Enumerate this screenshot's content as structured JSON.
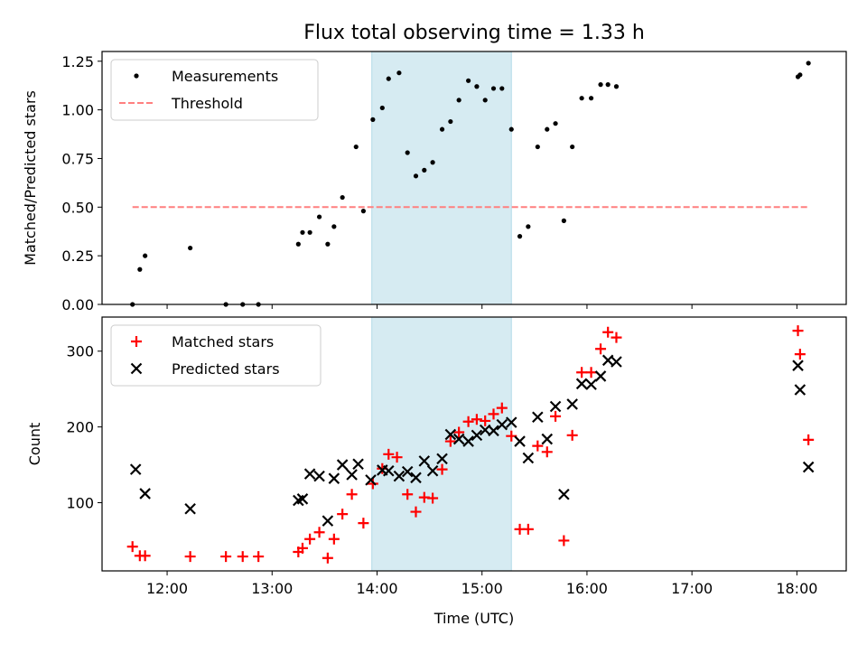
{
  "chart_data": {
    "title": "Flux total observing time = 1.33 h",
    "xlabel": "Time (UTC)",
    "x_ticks": [
      "12:00",
      "13:00",
      "14:00",
      "15:00",
      "16:00",
      "17:00",
      "18:00"
    ],
    "x_range_hours": [
      11.38,
      18.47
    ],
    "shaded_interval_hours": [
      13.95,
      15.28
    ],
    "shade_color": "#add8e6",
    "panels": [
      {
        "type": "scatter",
        "ylabel": "Matched/Predicted stars",
        "ylim": [
          0,
          1.3
        ],
        "y_ticks": [
          "0.00",
          "0.25",
          "0.50",
          "0.75",
          "1.00",
          "1.25"
        ],
        "y_tick_values": [
          0,
          0.25,
          0.5,
          0.75,
          1.0,
          1.25
        ],
        "legend_position": "top-left",
        "series": [
          {
            "name": "Measurements",
            "marker": "dot",
            "color": "#000000",
            "x": [
              11.67,
              11.74,
              11.79,
              12.22,
              12.56,
              12.72,
              12.87,
              13.25,
              13.29,
              13.36,
              13.45,
              13.53,
              13.59,
              13.67,
              13.8,
              13.87,
              13.96,
              14.05,
              14.11,
              14.21,
              14.29,
              14.37,
              14.45,
              14.53,
              14.62,
              14.7,
              14.78,
              14.87,
              14.95,
              15.03,
              15.11,
              15.19,
              15.28,
              15.36,
              15.44,
              15.53,
              15.62,
              15.7,
              15.78,
              15.86,
              15.95,
              16.04,
              16.13,
              16.2,
              16.28,
              18.01,
              18.03,
              18.11
            ],
            "y": [
              0.0,
              0.18,
              0.25,
              0.29,
              0.0,
              0.0,
              0.0,
              0.31,
              0.37,
              0.37,
              0.45,
              0.31,
              0.4,
              0.55,
              0.81,
              0.48,
              0.95,
              1.01,
              1.16,
              1.19,
              0.78,
              0.66,
              0.69,
              0.73,
              0.9,
              0.94,
              1.05,
              1.15,
              1.12,
              1.05,
              1.11,
              1.11,
              0.9,
              0.35,
              0.4,
              0.81,
              0.9,
              0.93,
              0.43,
              0.81,
              1.06,
              1.06,
              1.13,
              1.13,
              1.12,
              1.17,
              1.18,
              1.24
            ]
          },
          {
            "name": "Threshold",
            "type": "line",
            "style": "dashed",
            "color": "#ff7f7f",
            "x": [
              11.67,
              18.11
            ],
            "y": [
              0.5,
              0.5
            ]
          }
        ]
      },
      {
        "type": "scatter",
        "ylabel": "Count",
        "ylim": [
          10,
          345
        ],
        "y_ticks": [
          "100",
          "200",
          "300"
        ],
        "y_tick_values": [
          100,
          200,
          300
        ],
        "legend_position": "top-left",
        "series": [
          {
            "name": "Matched stars",
            "marker": "plus",
            "color": "#ff0000",
            "x": [
              11.67,
              11.74,
              11.79,
              12.22,
              12.56,
              12.72,
              12.87,
              13.25,
              13.29,
              13.36,
              13.45,
              13.53,
              13.59,
              13.67,
              13.76,
              13.87,
              13.96,
              14.05,
              14.11,
              14.19,
              14.29,
              14.37,
              14.45,
              14.53,
              14.62,
              14.7,
              14.78,
              14.87,
              14.95,
              15.03,
              15.11,
              15.19,
              15.28,
              15.36,
              15.44,
              15.53,
              15.62,
              15.7,
              15.78,
              15.86,
              15.95,
              16.04,
              16.13,
              16.2,
              16.28,
              18.01,
              18.03,
              18.11
            ],
            "y": [
              42,
              30,
              30,
              29,
              29,
              29,
              29,
              35,
              40,
              52,
              61,
              27,
              52,
              85,
              111,
              73,
              125,
              145,
              164,
              160,
              111,
              88,
              107,
              106,
              144,
              181,
              193,
              207,
              210,
              208,
              217,
              225,
              188,
              65,
              65,
              175,
              167,
              214,
              50,
              189,
              272,
              272,
              303,
              325,
              318,
              327,
              296,
              183
            ]
          },
          {
            "name": "Predicted stars",
            "marker": "x",
            "color": "#000000",
            "x": [
              11.7,
              11.79,
              12.22,
              13.25,
              13.29,
              13.36,
              13.45,
              13.53,
              13.59,
              13.67,
              13.76,
              13.82,
              13.94,
              14.05,
              14.11,
              14.21,
              14.29,
              14.37,
              14.45,
              14.53,
              14.62,
              14.7,
              14.78,
              14.87,
              14.95,
              15.03,
              15.11,
              15.19,
              15.28,
              15.36,
              15.44,
              15.53,
              15.62,
              15.7,
              15.78,
              15.86,
              15.95,
              16.04,
              16.13,
              16.2,
              16.28,
              18.01,
              18.03,
              18.11
            ],
            "y": [
              144,
              112,
              92,
              103,
              105,
              138,
              135,
              76,
              132,
              150,
              137,
              151,
              130,
              143,
              142,
              135,
              141,
              133,
              155,
              142,
              158,
              190,
              184,
              181,
              189,
              196,
              195,
              203,
              206,
              181,
              159,
              213,
              184,
              227,
              111,
              230,
              257,
              256,
              267,
              288,
              286,
              281,
              249,
              147
            ]
          }
        ]
      }
    ]
  }
}
